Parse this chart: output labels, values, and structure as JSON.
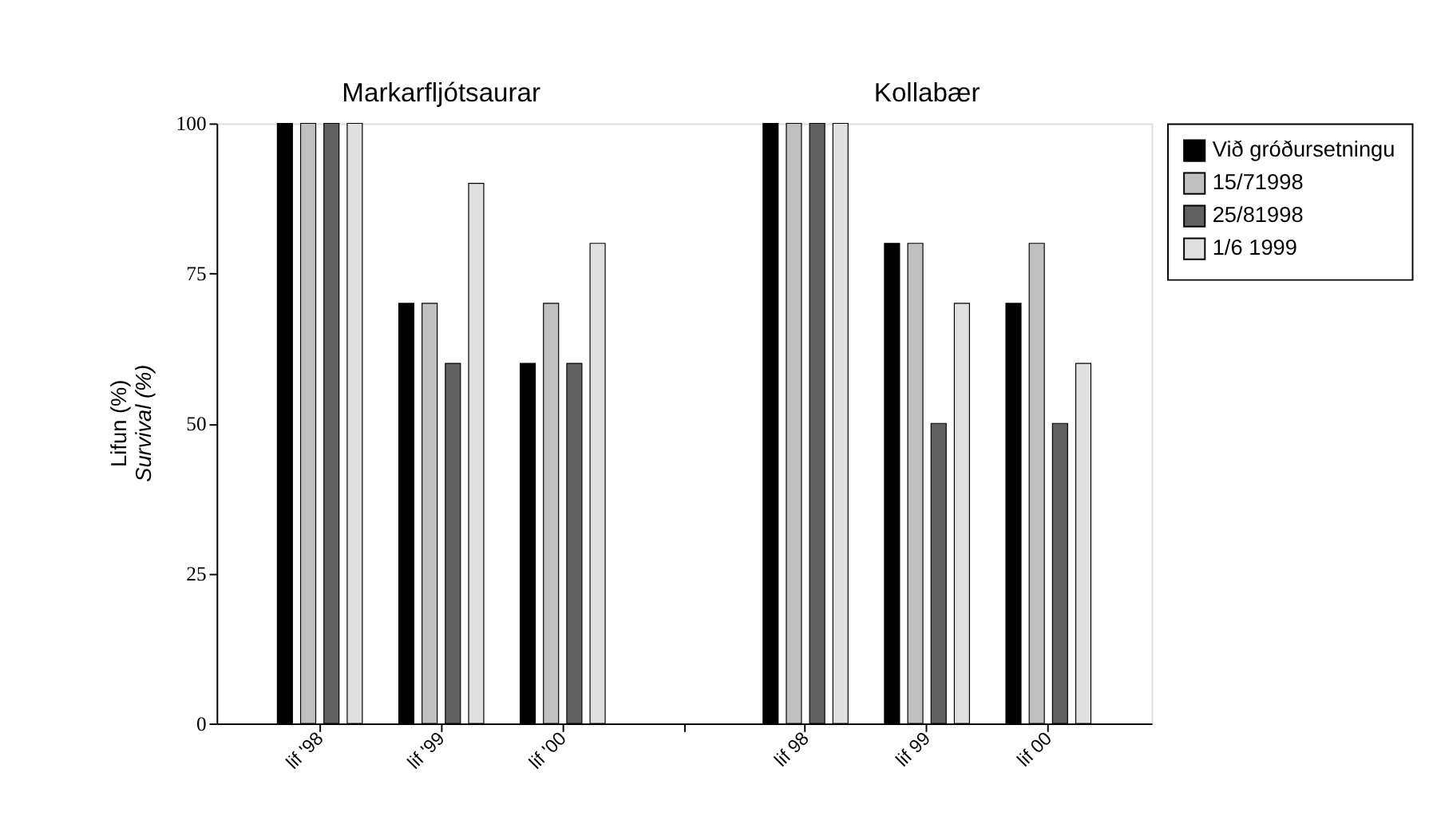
{
  "chart_data": {
    "type": "bar",
    "ylabel": "Lifun (%)\nSurvival (%)",
    "annotations": [
      "Markarfljótsaurar",
      "Kollabær"
    ],
    "categories": [
      "lif '98",
      "lif '99",
      "lif '00",
      null,
      "lif 98",
      "lif 99",
      "lif 00"
    ],
    "series": [
      {
        "name": "Við gróðursetningu",
        "color": "#000000",
        "values": [
          100,
          70,
          60,
          null,
          100,
          80,
          70
        ]
      },
      {
        "name": "15/71998",
        "color": "#c0c0c0",
        "values": [
          100,
          70,
          70,
          null,
          100,
          80,
          80
        ]
      },
      {
        "name": "25/81998",
        "color": "#606060",
        "values": [
          100,
          60,
          60,
          null,
          100,
          50,
          50
        ]
      },
      {
        "name": "1/6 1999",
        "color": "#e0e0e0",
        "values": [
          100,
          90,
          80,
          null,
          100,
          70,
          60
        ]
      }
    ],
    "ylim": [
      0,
      100
    ],
    "yticks": [
      0,
      25,
      50,
      75,
      100
    ],
    "grid": false,
    "legend": "top right"
  }
}
